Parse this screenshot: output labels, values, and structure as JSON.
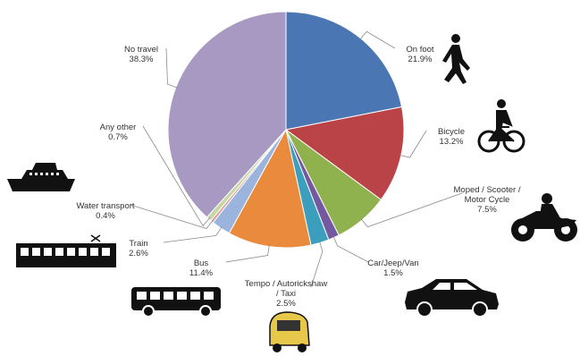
{
  "chart_data": {
    "type": "pie",
    "title": "",
    "slices": [
      {
        "label": "On foot",
        "value": 21.9,
        "value_label": "21.9%",
        "color": "#4a77b4",
        "icon": "walking-person-icon"
      },
      {
        "label": "Bicycle",
        "value": 13.2,
        "value_label": "13.2%",
        "color": "#b94346",
        "icon": "cyclist-icon"
      },
      {
        "label": "Moped / Scooter / Motor Cycle",
        "value": 7.5,
        "value_label": "7.5%",
        "color": "#8fb14e",
        "icon": "motorcycle-icon"
      },
      {
        "label": "Car/Jeep/Van",
        "value": 1.5,
        "value_label": "1.5%",
        "color": "#7559a0",
        "icon": "car-icon"
      },
      {
        "label": "Tempo / Autorickshaw / Taxi",
        "value": 2.5,
        "value_label": "2.5%",
        "color": "#3a9ebc",
        "icon": "autorickshaw-icon"
      },
      {
        "label": "Bus",
        "value": 11.4,
        "value_label": "11.4%",
        "color": "#e98a3c",
        "icon": "bus-icon"
      },
      {
        "label": "Train",
        "value": 2.6,
        "value_label": "2.6%",
        "color": "#9ab4dd",
        "icon": "train-icon"
      },
      {
        "label": "Water transport",
        "value": 0.4,
        "value_label": "0.4%",
        "color": "#dc9d9c",
        "icon": "ship-icon"
      },
      {
        "label": "Any other",
        "value": 0.7,
        "value_label": "0.7%",
        "color": "#c5d8a4",
        "icon": ""
      },
      {
        "label": "No travel",
        "value": 38.3,
        "value_label": "38.3%",
        "color": "#a899c3",
        "icon": ""
      }
    ],
    "start_angle_deg": 0,
    "direction": "clockwise"
  }
}
